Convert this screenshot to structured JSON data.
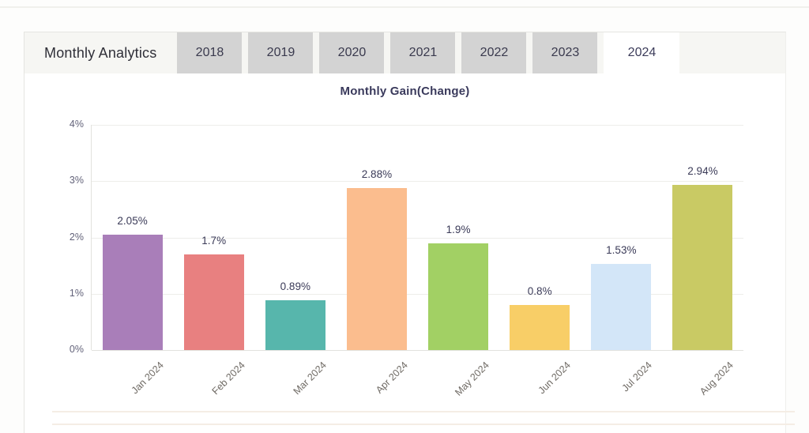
{
  "header": {
    "title": "Monthly Analytics",
    "tabs": [
      {
        "label": "2018",
        "active": false
      },
      {
        "label": "2019",
        "active": false
      },
      {
        "label": "2020",
        "active": false
      },
      {
        "label": "2021",
        "active": false
      },
      {
        "label": "2022",
        "active": false
      },
      {
        "label": "2023",
        "active": false
      },
      {
        "label": "2024",
        "active": true
      }
    ]
  },
  "chart_data": {
    "type": "bar",
    "title": "Monthly Gain(Change)",
    "categories": [
      "Jan 2024",
      "Feb 2024",
      "Mar 2024",
      "Apr 2024",
      "May 2024",
      "Jun 2024",
      "Jul 2024",
      "Aug 2024"
    ],
    "values": [
      2.05,
      1.7,
      0.89,
      2.88,
      1.9,
      0.8,
      1.53,
      2.94
    ],
    "value_labels": [
      "2.05%",
      "1.7%",
      "0.89%",
      "2.88%",
      "1.9%",
      "0.8%",
      "1.53%",
      "2.94%"
    ],
    "colors": [
      "#a97eb9",
      "#e88080",
      "#57b6ac",
      "#fbbd8e",
      "#a2d064",
      "#f8ce67",
      "#d3e6f8",
      "#c9ca64"
    ],
    "xlabel": "",
    "ylabel": "",
    "ylim": [
      0,
      4
    ],
    "yticks": [
      "0%",
      "1%",
      "2%",
      "3%",
      "4%"
    ],
    "grid": true,
    "legend": false
  }
}
